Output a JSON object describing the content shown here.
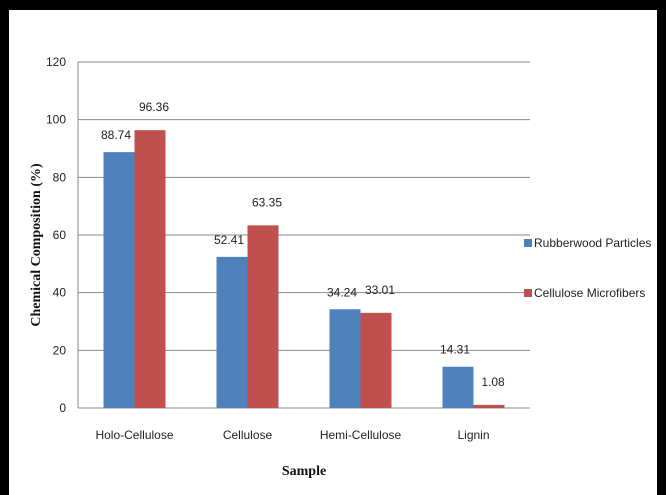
{
  "chart_data": {
    "type": "bar",
    "title": "",
    "xlabel": "Sample",
    "ylabel": "Chemical Composition (%)",
    "ylim": [
      0,
      120
    ],
    "ytick_step": 20,
    "categories": [
      "Holo-Cellulose",
      "Cellulose",
      "Hemi-Cellulose",
      "Lignin"
    ],
    "series": [
      {
        "name": "Rubberwood Particles",
        "color": "#4F81BD",
        "values": [
          88.74,
          52.41,
          34.24,
          14.31
        ],
        "labels": [
          "88.74",
          "52.41",
          "34.24",
          "14.31"
        ]
      },
      {
        "name": "Cellulose Microfibers",
        "color": "#C0504D",
        "values": [
          96.36,
          63.35,
          33.01,
          1.08
        ],
        "labels": [
          "96.36",
          "63.35",
          "33.01",
          "1.08"
        ]
      }
    ],
    "grid": true,
    "legend_position": "right"
  }
}
